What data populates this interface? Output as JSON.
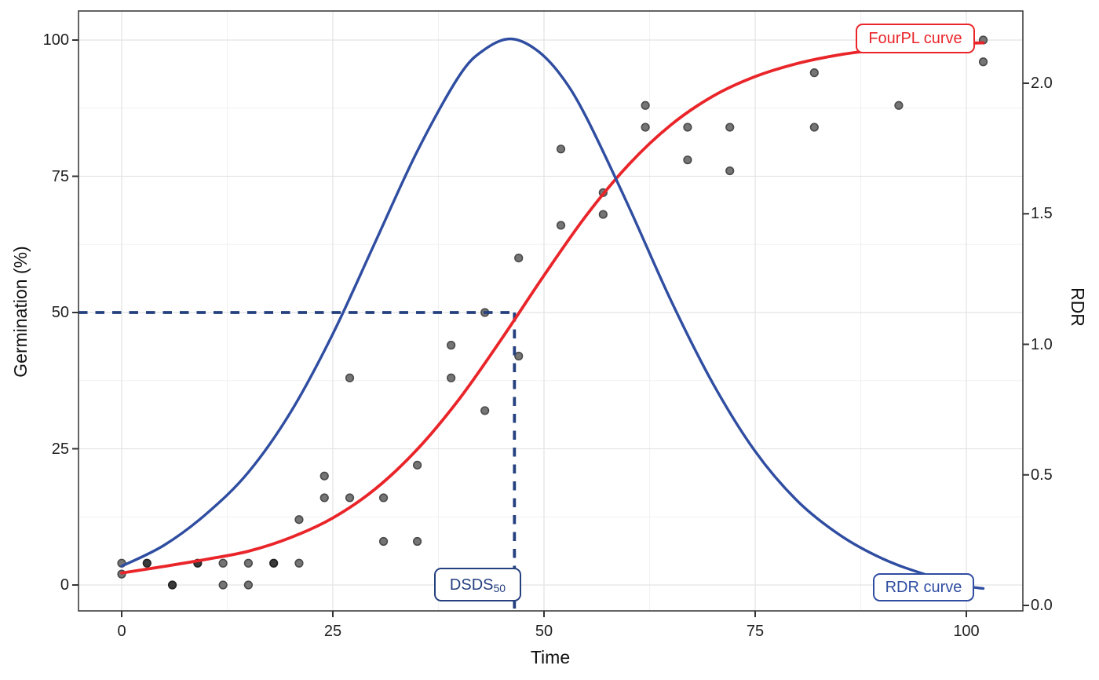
{
  "chart_data": {
    "type": "line+scatter",
    "axes": {
      "x_title": "Time",
      "y_left_title": "Germination (%)",
      "y_right_title": "RDR"
    },
    "x_ticks": {
      "values": [
        0,
        25,
        50,
        75,
        100
      ],
      "labels": [
        "0",
        "25",
        "50",
        "75",
        "100"
      ]
    },
    "y_left_ticks": {
      "values": [
        0,
        25,
        50,
        75,
        100
      ],
      "labels": [
        "0",
        "25",
        "50",
        "75",
        "100"
      ]
    },
    "y_right_ticks": {
      "values": [
        0,
        0.5,
        1,
        1.5,
        2
      ],
      "labels": [
        "0.0",
        "0.5",
        "1.0",
        "1.5",
        "2.0"
      ]
    },
    "x_minor": [
      12.5,
      37.5,
      62.5,
      87.5
    ],
    "y_minor": [
      12.5,
      37.5,
      62.5,
      87.5
    ],
    "xlim": [
      -5.1,
      106.7
    ],
    "ylim_left": [
      -4.75,
      105.3
    ],
    "ylim_right": [
      -0.02,
      2.28
    ],
    "grid": "on",
    "scatter": {
      "name": "germination-observations",
      "points": [
        [
          0,
          2,
          0
        ],
        [
          0,
          4,
          0
        ],
        [
          3,
          4,
          1
        ],
        [
          6,
          0,
          1
        ],
        [
          9,
          4,
          1
        ],
        [
          12,
          0,
          0
        ],
        [
          12,
          4,
          0
        ],
        [
          15,
          0,
          0
        ],
        [
          15,
          4,
          0
        ],
        [
          18,
          4,
          1
        ],
        [
          21,
          4,
          0
        ],
        [
          21,
          12,
          0
        ],
        [
          24,
          16,
          0
        ],
        [
          24,
          20,
          0
        ],
        [
          27,
          16,
          0
        ],
        [
          27,
          38,
          0
        ],
        [
          31,
          8,
          0
        ],
        [
          31,
          16,
          0
        ],
        [
          35,
          8,
          0
        ],
        [
          35,
          22,
          0
        ],
        [
          39,
          38,
          0
        ],
        [
          39,
          44,
          0
        ],
        [
          43,
          32,
          0
        ],
        [
          43,
          50,
          0
        ],
        [
          47,
          42,
          0
        ],
        [
          47,
          60,
          0
        ],
        [
          52,
          66,
          0
        ],
        [
          52,
          80,
          0
        ],
        [
          57,
          68,
          0
        ],
        [
          57,
          72,
          0
        ],
        [
          62,
          84,
          0
        ],
        [
          62,
          88,
          0
        ],
        [
          67,
          78,
          0
        ],
        [
          67,
          84,
          0
        ],
        [
          72,
          76,
          0
        ],
        [
          72,
          84,
          0
        ],
        [
          82,
          84,
          0
        ],
        [
          82,
          94,
          0
        ],
        [
          92,
          88,
          0
        ],
        [
          102,
          96,
          0
        ],
        [
          102,
          100,
          0
        ]
      ]
    },
    "series": [
      {
        "name": "FourPL curve",
        "axis": "left",
        "color": "#e9252a",
        "points": [
          [
            0,
            2.2
          ],
          [
            5,
            3.4
          ],
          [
            10,
            4.7
          ],
          [
            15,
            6.2
          ],
          [
            20,
            8.7
          ],
          [
            25,
            12.3
          ],
          [
            30,
            17.6
          ],
          [
            35,
            24.9
          ],
          [
            40,
            34.2
          ],
          [
            45,
            45.2
          ],
          [
            50,
            56.8
          ],
          [
            55,
            67.8
          ],
          [
            60,
            77.1
          ],
          [
            65,
            84.4
          ],
          [
            70,
            89.7
          ],
          [
            75,
            93.3
          ],
          [
            80,
            95.7
          ],
          [
            85,
            97.3
          ],
          [
            90,
            98.3
          ],
          [
            95,
            99.0
          ],
          [
            100,
            99.4
          ],
          [
            102,
            99.5
          ]
        ]
      },
      {
        "name": "RDR curve",
        "axis": "right",
        "color": "#2f4da1",
        "points": [
          [
            0,
            0.15
          ],
          [
            5,
            0.23
          ],
          [
            10,
            0.35
          ],
          [
            15,
            0.51
          ],
          [
            20,
            0.74
          ],
          [
            25,
            1.04
          ],
          [
            30,
            1.39
          ],
          [
            35,
            1.74
          ],
          [
            40,
            2.03
          ],
          [
            43,
            2.13
          ],
          [
            46,
            2.17
          ],
          [
            49,
            2.13
          ],
          [
            52,
            2.03
          ],
          [
            55,
            1.87
          ],
          [
            60,
            1.53
          ],
          [
            65,
            1.17
          ],
          [
            70,
            0.85
          ],
          [
            75,
            0.59
          ],
          [
            80,
            0.4
          ],
          [
            85,
            0.27
          ],
          [
            90,
            0.18
          ],
          [
            95,
            0.12
          ],
          [
            100,
            0.075
          ],
          [
            102,
            0.065
          ]
        ]
      }
    ],
    "annotations": {
      "fourpl": {
        "label": "FourPL curve"
      },
      "rdr": {
        "label": "RDR curve"
      },
      "dsds": {
        "main": "DSDS",
        "sub": "50",
        "x": 46.5,
        "y": 50
      }
    },
    "colors": {
      "fourpl": "#e9252a",
      "rdr_curve": "#2f4da1",
      "dashed": "#24407f",
      "point_fill": "#757575",
      "point_stroke": "#4a4a4a",
      "point_dark_fill": "#3a3a3a",
      "point_dark_stroke": "#222222",
      "grid_major": "#e4e4e4",
      "grid_minor": "#f1f1f1",
      "panel_border": "#3d3d3d",
      "tick_mark": "#333333"
    }
  }
}
